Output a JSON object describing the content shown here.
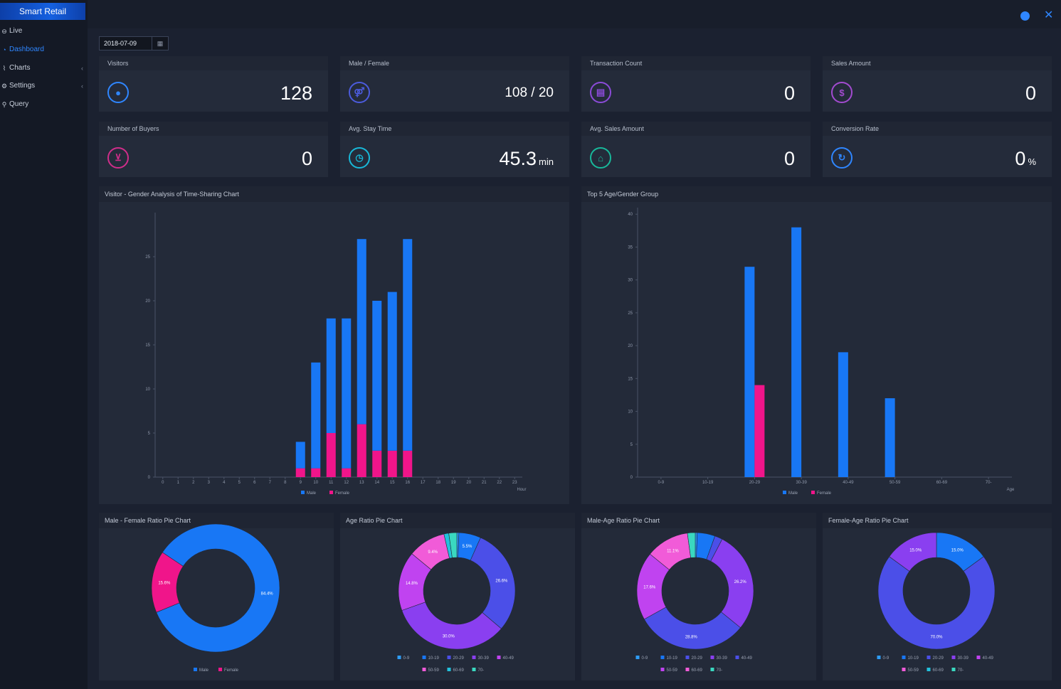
{
  "app": {
    "brand": "Smart Retail"
  },
  "sidebar": {
    "items": [
      {
        "icon": "⊖",
        "label": "Live",
        "active": false,
        "arrow": ""
      },
      {
        "icon": "◔",
        "label": "Dashboard",
        "active": true,
        "arrow": ""
      },
      {
        "icon": "⌇",
        "label": "Charts",
        "active": false,
        "arrow": "‹"
      },
      {
        "icon": "⚙",
        "label": "Settings",
        "active": false,
        "arrow": "‹"
      },
      {
        "icon": "⚲",
        "label": "Query",
        "active": false,
        "arrow": ""
      }
    ]
  },
  "toolbar": {
    "date": "2018-07-09",
    "calendar_icon": "calendar-icon"
  },
  "stats": {
    "visitors": {
      "label": "Visitors",
      "value": "128",
      "icon": "person-icon",
      "color": "#2f86ff"
    },
    "male_female": {
      "label": "Male / Female",
      "value": "108 / 20",
      "icon": "gender-icon",
      "color": "#4b5bdc"
    },
    "transactions": {
      "label": "Transaction Count",
      "value": "0",
      "icon": "receipt-icon",
      "color": "#8b4bd8"
    },
    "sales": {
      "label": "Sales Amount",
      "value": "0",
      "icon": "dollar-icon",
      "color": "#a24bd0"
    },
    "buyers": {
      "label": "Number of Buyers",
      "value": "0",
      "icon": "cart-icon",
      "color": "#d02d8a"
    },
    "stay": {
      "label": "Avg. Stay Time",
      "value": "45.3",
      "unit": "min",
      "icon": "clock-icon",
      "color": "#18b8d8"
    },
    "avg_sales": {
      "label": "Avg. Sales Amount",
      "value": "0",
      "icon": "bag-icon",
      "color": "#18b89a"
    },
    "conversion": {
      "label": "Conversion Rate",
      "value": "0",
      "unit": "%",
      "icon": "refresh-icon",
      "color": "#2f86ff"
    }
  },
  "panels": {
    "time_chart": "Visitor - Gender Analysis of Time-Sharing Chart",
    "age_chart": "Top 5 Age/Gender Group",
    "mf_pie": "Male - Female Ratio Pie Chart",
    "age_pie": "Age Ratio Pie Chart",
    "male_age_pie": "Male-Age Ratio Pie Chart",
    "female_age_pie": "Female-Age Ratio Pie Chart"
  },
  "colors": {
    "male": "#1877f5",
    "female": "#f0158a"
  },
  "chart_data": [
    {
      "type": "bar",
      "title": "Visitor - Gender Analysis of Time-Sharing Chart",
      "xlabel": "Hour",
      "ylim": [
        0,
        30
      ],
      "yticks": [
        0,
        5,
        10,
        15,
        20,
        25
      ],
      "categories": [
        "0",
        "1",
        "2",
        "3",
        "4",
        "5",
        "6",
        "7",
        "8",
        "9",
        "10",
        "11",
        "12",
        "13",
        "14",
        "15",
        "16",
        "17",
        "18",
        "19",
        "20",
        "21",
        "22",
        "23"
      ],
      "stacked": true,
      "series": [
        {
          "name": "Male",
          "values": [
            0,
            0,
            0,
            0,
            0,
            0,
            0,
            0,
            0,
            3,
            12,
            13,
            17,
            21,
            17,
            18,
            24,
            0,
            0,
            0,
            0,
            0,
            0,
            0
          ]
        },
        {
          "name": "Female",
          "values": [
            0,
            0,
            0,
            0,
            0,
            0,
            0,
            0,
            0,
            1,
            1,
            5,
            1,
            6,
            3,
            3,
            3,
            0,
            0,
            0,
            0,
            0,
            0,
            0
          ]
        }
      ],
      "legend": "bottom"
    },
    {
      "type": "bar",
      "title": "Top 5 Age/Gender Group",
      "xlabel": "Age",
      "ylim": [
        0,
        41
      ],
      "yticks": [
        0,
        5,
        10,
        15,
        20,
        25,
        30,
        35,
        40
      ],
      "categories": [
        "0-9",
        "10-19",
        "20-29",
        "30-39",
        "40-49",
        "50-59",
        "60-69",
        "70-"
      ],
      "series": [
        {
          "name": "Male",
          "values": [
            0,
            0,
            32,
            38,
            19,
            12,
            0,
            0
          ]
        },
        {
          "name": "Female",
          "values": [
            0,
            0,
            14,
            0,
            0,
            0,
            0,
            0
          ]
        }
      ],
      "legend": "bottom"
    },
    {
      "type": "pie",
      "title": "Male - Female Ratio Pie Chart",
      "labels": [
        "Male",
        "Female"
      ],
      "values": [
        84.4,
        15.6
      ],
      "display": [
        "84.4%",
        "15.6%"
      ],
      "colors": [
        "#1877f5",
        "#f0158a"
      ]
    },
    {
      "type": "pie",
      "title": "Age Ratio Pie Chart",
      "labels": [
        "0-9",
        "10-19",
        "20-29",
        "30-39",
        "40-49",
        "50-59",
        "60-69",
        "70-"
      ],
      "values": [
        0.5,
        5.5,
        26.6,
        30.0,
        14.8,
        9.4,
        1.2,
        2.0
      ],
      "display": [
        "",
        "5.5%",
        "26.6%",
        "30.0%",
        "14.8%",
        "9.4%",
        "",
        ""
      ],
      "colors": [
        "#2e9cf5",
        "#1877f5",
        "#4b4fe8",
        "#8a3ff0",
        "#c043f0",
        "#f15bd8",
        "#22c1dd",
        "#3ad8c0"
      ]
    },
    {
      "type": "pie",
      "title": "Male-Age Ratio Pie Chart",
      "labels": [
        "0-9",
        "10-19",
        "20-29",
        "30-39",
        "40-49",
        "50-59",
        "60-69",
        "70-"
      ],
      "values": [
        0.5,
        4.6,
        2.0,
        26.2,
        28.8,
        17.6,
        11.1,
        2.0
      ],
      "display": [
        "",
        "",
        "",
        "26.2%",
        "28.8%",
        "17.6%",
        "11.1%",
        ""
      ],
      "colors": [
        "#2e9cf5",
        "#1877f5",
        "#4b4fe8",
        "#8a3ff0",
        "#4b4fe8",
        "#c043f0",
        "#f15bd8",
        "#3ad8c0"
      ]
    },
    {
      "type": "pie",
      "title": "Female-Age Ratio Pie Chart",
      "labels": [
        "0-9",
        "10-19",
        "20-29",
        "30-39",
        "40-49",
        "50-59",
        "60-69",
        "70-"
      ],
      "values": [
        0,
        15.0,
        70.0,
        15.0,
        0,
        0,
        0,
        0
      ],
      "display": [
        "",
        "15.0%",
        "70.0%",
        "15.0%",
        "",
        "",
        "",
        ""
      ],
      "colors": [
        "#2e9cf5",
        "#1877f5",
        "#4b4fe8",
        "#8a3ff0",
        "#c043f0",
        "#f15bd8",
        "#22c1dd",
        "#3ad8c0"
      ]
    }
  ]
}
